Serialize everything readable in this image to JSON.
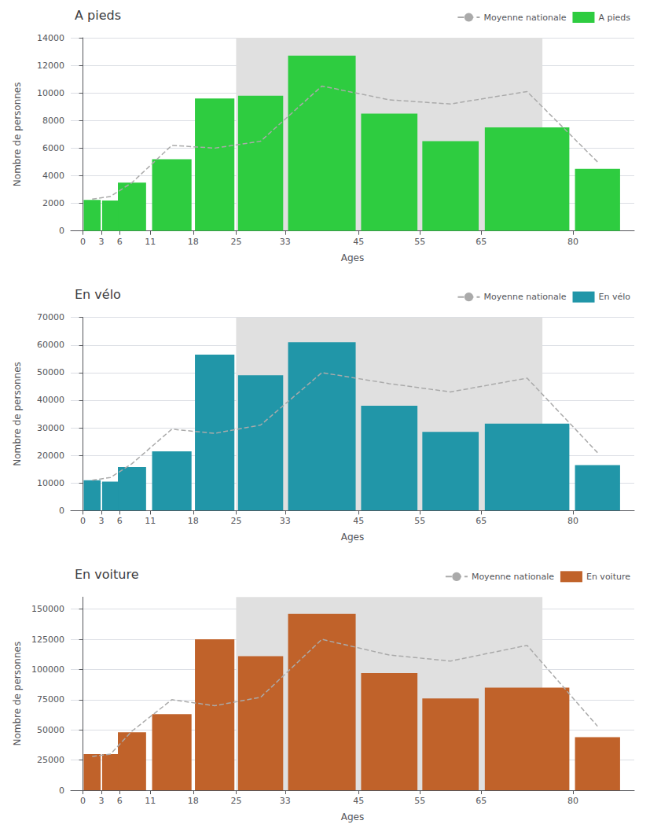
{
  "chart_data": [
    {
      "type": "bar",
      "title": "A pieds",
      "xlabel": "Ages",
      "ylabel": "Nombre de personnes",
      "x": [
        1.5,
        4.5,
        8,
        14.5,
        21.5,
        29,
        39,
        50,
        60,
        72.5,
        84
      ],
      "widths": [
        3,
        3,
        5,
        7,
        7,
        8,
        12,
        10,
        10,
        15,
        8
      ],
      "xlim": [
        -2,
        90
      ],
      "xticks": [
        0,
        3,
        6,
        11,
        18,
        25,
        33,
        45,
        55,
        65,
        80
      ],
      "ylim": [
        0,
        14000
      ],
      "yticks": [
        0,
        2000,
        4000,
        6000,
        8000,
        10000,
        12000,
        14000
      ],
      "grid": true,
      "legend": "upper right",
      "highlight": {
        "xlim": [
          25,
          75
        ],
        "color": "#e0e0e0"
      },
      "series": [
        {
          "name": "Moyenne nationale",
          "type": "line",
          "line_style": "dashed",
          "color": "#aaaaaa",
          "values": [
            2300,
            2500,
            3500,
            6200,
            6000,
            6500,
            10500,
            9500,
            9200,
            10100,
            5000
          ]
        },
        {
          "name": "A pieds",
          "type": "bar",
          "color": "#2ecc40",
          "values": [
            2250,
            2200,
            3500,
            5200,
            9600,
            9800,
            12700,
            8500,
            6500,
            7500,
            4500
          ]
        }
      ]
    },
    {
      "type": "bar",
      "title": "En vélo",
      "xlabel": "Ages",
      "ylabel": "Nombre de personnes",
      "x": [
        1.5,
        4.5,
        8,
        14.5,
        21.5,
        29,
        39,
        50,
        60,
        72.5,
        84
      ],
      "widths": [
        3,
        3,
        5,
        7,
        7,
        8,
        12,
        10,
        10,
        15,
        8
      ],
      "xlim": [
        -2,
        90
      ],
      "xticks": [
        0,
        3,
        6,
        11,
        18,
        25,
        33,
        45,
        55,
        65,
        80
      ],
      "ylim": [
        0,
        70000
      ],
      "yticks": [
        0,
        10000,
        20000,
        30000,
        40000,
        50000,
        60000,
        70000
      ],
      "grid": true,
      "legend": "upper right",
      "highlight": {
        "xlim": [
          25,
          75
        ],
        "color": "#e0e0e0"
      },
      "series": [
        {
          "name": "Moyenne nationale",
          "type": "line",
          "line_style": "dashed",
          "color": "#aaaaaa",
          "values": [
            11000,
            12000,
            17000,
            29500,
            28000,
            31000,
            50000,
            46000,
            43000,
            48000,
            21000
          ]
        },
        {
          "name": "En vélo",
          "type": "bar",
          "color": "#2196a8",
          "values": [
            11000,
            10500,
            15800,
            21500,
            56500,
            49000,
            61000,
            38000,
            28500,
            31500,
            16500
          ]
        }
      ]
    },
    {
      "type": "bar",
      "title": "En voiture",
      "xlabel": "Ages",
      "ylabel": "Nombre de personnes",
      "x": [
        1.5,
        4.5,
        8,
        14.5,
        21.5,
        29,
        39,
        50,
        60,
        72.5,
        84
      ],
      "widths": [
        3,
        3,
        5,
        7,
        7,
        8,
        12,
        10,
        10,
        15,
        8
      ],
      "xlim": [
        -2,
        90
      ],
      "xticks": [
        0,
        3,
        6,
        11,
        18,
        25,
        33,
        45,
        55,
        65,
        80
      ],
      "ylim": [
        0,
        160000
      ],
      "yticks": [
        0,
        25000,
        50000,
        75000,
        100000,
        125000,
        150000
      ],
      "grid": true,
      "legend": "upper right",
      "highlight": {
        "xlim": [
          25,
          75
        ],
        "color": "#e0e0e0"
      },
      "series": [
        {
          "name": "Moyenne nationale",
          "type": "line",
          "line_style": "dashed",
          "color": "#aaaaaa",
          "values": [
            28000,
            30000,
            49000,
            75000,
            70000,
            77000,
            125000,
            112000,
            107000,
            120000,
            53000
          ]
        },
        {
          "name": "En voiture",
          "type": "bar",
          "color": "#c0622a",
          "values": [
            30000,
            30000,
            48000,
            63000,
            125000,
            111000,
            146000,
            97000,
            76000,
            85000,
            44000
          ]
        }
      ]
    }
  ]
}
